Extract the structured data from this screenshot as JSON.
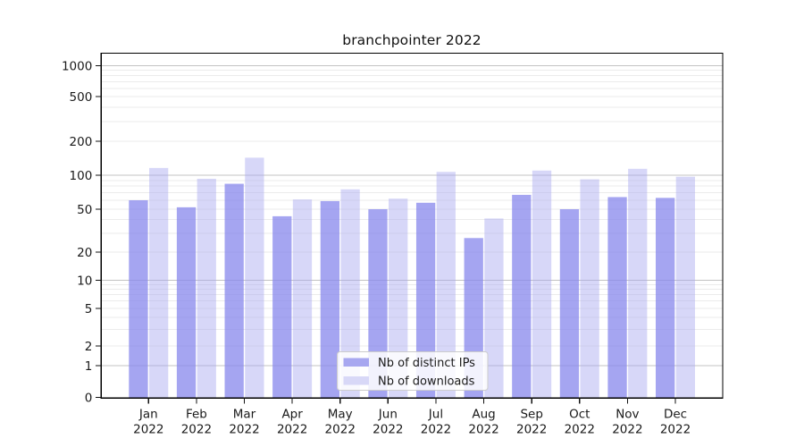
{
  "chart_data": {
    "type": "bar",
    "title": "branchpointer 2022",
    "categories": [
      "Jan",
      "Feb",
      "Mar",
      "Apr",
      "May",
      "Jun",
      "Jul",
      "Aug",
      "Sep",
      "Oct",
      "Nov",
      "Dec"
    ],
    "year_label": "2022",
    "series": [
      {
        "name": "Nb of distinct IPs",
        "color": "#a7a7f0",
        "fill": "rgba(134,134,236,0.74)",
        "values": [
          60,
          52,
          84,
          43,
          59,
          50,
          57,
          27,
          67,
          50,
          64,
          63
        ]
      },
      {
        "name": "Nb of downloads",
        "color": "#d8d8f7",
        "fill": "rgba(168,168,240,0.46)",
        "values": [
          116,
          93,
          143,
          61,
          75,
          62,
          107,
          41,
          110,
          92,
          114,
          97
        ]
      }
    ],
    "yscale": "symlog",
    "yticks": [
      0,
      1,
      2,
      5,
      10,
      20,
      50,
      100,
      200,
      500,
      1000
    ],
    "ytick_labels": [
      "0",
      "1",
      "2",
      "5",
      "10",
      "20",
      "50",
      "100",
      "200",
      "500",
      "1000"
    ],
    "ylim": [
      0,
      1300
    ],
    "xlabel": "",
    "ylabel": "",
    "grid": true,
    "legend_position": "lower center",
    "colors": {
      "major_grid": "#c3c3c3",
      "minor_grid": "#ebebeb",
      "spine": "#000000",
      "legend_border": "#cccccc"
    }
  }
}
